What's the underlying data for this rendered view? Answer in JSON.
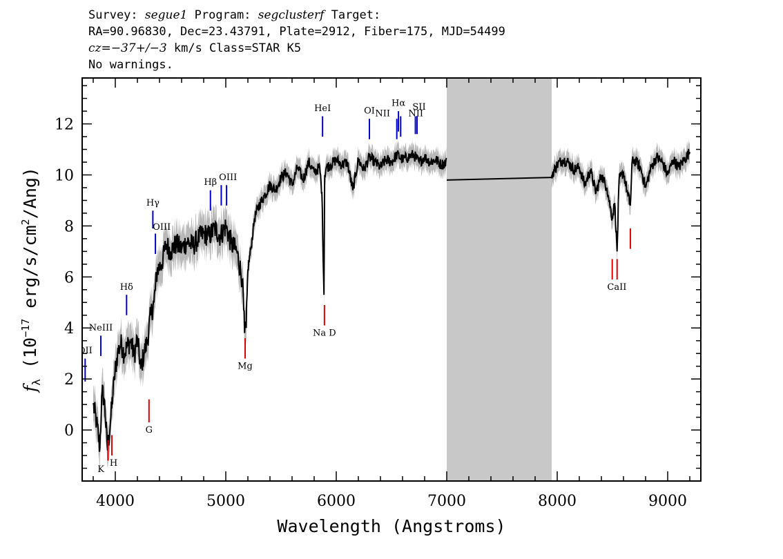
{
  "header": {
    "line1_prefix": "Survey: ",
    "survey": "segue1",
    "line1_mid": " Program: ",
    "program": "segclusterf",
    "line1_suffix": " Target:",
    "line2": "RA=90.96830, Dec=23.43791, Plate=2912, Fiber=175, MJD=54499",
    "cz_label": "cz",
    "cz_value": "=−37+/−3",
    "line3_suffix": " km/s Class=STAR K5",
    "line4": "No warnings."
  },
  "chart_data": {
    "type": "line",
    "xlabel": "Wavelength (Angstroms)",
    "ylabel_main": "f",
    "ylabel_sub": "λ",
    "ylabel_rest": " (10",
    "ylabel_exp": "−17",
    "ylabel_rest2": " erg/s/cm",
    "ylabel_exp2": "2",
    "ylabel_rest3": "/Ang)",
    "xlim": [
      3700,
      9300
    ],
    "ylim": [
      -2,
      13.8
    ],
    "xticks": [
      4000,
      5000,
      6000,
      7000,
      8000,
      9000
    ],
    "yticks": [
      0,
      2,
      4,
      6,
      8,
      10,
      12
    ],
    "masked_region": [
      7000,
      7950
    ],
    "colors": {
      "flux": "#000000",
      "error_band": "#b8b8b8",
      "mask": "#c8c8c8",
      "emission": "#0000cc",
      "absorption": "#dd0000"
    },
    "series": [
      {
        "role": "flux",
        "x": [
          3800,
          3830,
          3860,
          3880,
          3900,
          3930,
          3960,
          3990,
          4020,
          4050,
          4080,
          4110,
          4140,
          4170,
          4200,
          4230,
          4260,
          4290,
          4320,
          4350,
          4380,
          4420,
          4460,
          4500,
          4550,
          4600,
          4650,
          4700,
          4750,
          4800,
          4850,
          4900,
          4950,
          5000,
          5050,
          5100,
          5150,
          5170,
          5185,
          5200,
          5230,
          5260,
          5300,
          5350,
          5400,
          5450,
          5500,
          5550,
          5600,
          5650,
          5700,
          5750,
          5800,
          5850,
          5870,
          5889,
          5895,
          5910,
          5950,
          6000,
          6050,
          6100,
          6150,
          6200,
          6250,
          6300,
          6350,
          6400,
          6450,
          6500,
          6550,
          6600,
          6650,
          6700,
          6750,
          6800,
          6850,
          6900,
          6950,
          7000,
          7950,
          8000,
          8050,
          8100,
          8150,
          8200,
          8250,
          8300,
          8350,
          8400,
          8450,
          8498,
          8520,
          8542,
          8560,
          8600,
          8640,
          8662,
          8680,
          8720,
          8760,
          8800,
          8850,
          8900,
          8950,
          9000,
          9050,
          9100,
          9150,
          9200
        ],
        "values": [
          1.0,
          0.3,
          -0.7,
          1.5,
          1.2,
          -0.8,
          0.5,
          2.0,
          3.0,
          3.4,
          3.0,
          3.3,
          3.5,
          2.9,
          3.6,
          2.4,
          3.0,
          3.5,
          4.5,
          5.0,
          6.3,
          6.5,
          7.3,
          7.0,
          7.3,
          7.1,
          7.4,
          7.2,
          7.5,
          7.7,
          7.6,
          7.9,
          7.6,
          8.0,
          7.3,
          7.0,
          5.9,
          3.8,
          4.0,
          6.3,
          7.2,
          8.3,
          8.8,
          9.2,
          9.6,
          9.4,
          9.9,
          10.1,
          9.6,
          10.3,
          9.8,
          10.5,
          10.1,
          10.3,
          9.3,
          5.3,
          10.0,
          10.3,
          10.4,
          10.6,
          10.4,
          10.5,
          9.4,
          10.6,
          10.2,
          10.7,
          10.5,
          10.3,
          10.6,
          10.5,
          10.8,
          10.6,
          10.7,
          10.8,
          10.5,
          10.7,
          10.5,
          10.6,
          10.4,
          10.5,
          10.0,
          10.4,
          10.6,
          10.5,
          10.2,
          10.3,
          9.6,
          10.2,
          9.3,
          10.0,
          9.5,
          8.3,
          8.9,
          7.0,
          9.8,
          10.1,
          9.2,
          8.8,
          10.6,
          10.5,
          10.2,
          9.5,
          10.3,
          10.7,
          10.5,
          10.0,
          10.6,
          10.3,
          10.6,
          10.9
        ]
      },
      {
        "role": "masked_interpolation",
        "x": [
          7000,
          7950
        ],
        "values": [
          9.8,
          9.9
        ]
      }
    ],
    "line_markers": [
      {
        "label": "OII",
        "x": 3727,
        "kind": "emission",
        "y0": 1.9,
        "y1": 2.8,
        "lx": 3727,
        "ly": 3.0
      },
      {
        "label": "NeIII",
        "x": 3869,
        "kind": "emission",
        "y0": 2.9,
        "y1": 3.7,
        "lx": 3869,
        "ly": 3.9
      },
      {
        "label": "Hδ",
        "x": 4102,
        "kind": "emission",
        "y0": 4.5,
        "y1": 5.3,
        "lx": 4102,
        "ly": 5.5
      },
      {
        "label": "Hγ",
        "x": 4340,
        "kind": "emission",
        "y0": 7.9,
        "y1": 8.6,
        "lx": 4340,
        "ly": 8.8
      },
      {
        "label": "OIII",
        "x": 4363,
        "kind": "emission",
        "y0": 6.9,
        "y1": 7.7,
        "lx": 4420,
        "ly": 7.85
      },
      {
        "label": "Hβ",
        "x": 4861,
        "kind": "emission",
        "y0": 8.6,
        "y1": 9.4,
        "lx": 4861,
        "ly": 9.6
      },
      {
        "label": "OIII",
        "x": 4959,
        "kind": "emission",
        "y0": 8.8,
        "y1": 9.6,
        "lx": 5020,
        "ly": 9.8
      },
      {
        "label": "OIII",
        "x": 5007,
        "kind": "emission",
        "y0": 8.8,
        "y1": 9.6,
        "lx": null,
        "ly": null
      },
      {
        "label": "HeI",
        "x": 5876,
        "kind": "emission",
        "y0": 11.5,
        "y1": 12.3,
        "lx": 5876,
        "ly": 12.5
      },
      {
        "label": "OI",
        "x": 6300,
        "kind": "emission",
        "y0": 11.4,
        "y1": 12.2,
        "lx": 6300,
        "ly": 12.4
      },
      {
        "label": "NII",
        "x": 6548,
        "kind": "emission",
        "y0": 11.4,
        "y1": 12.2,
        "lx": 6420,
        "ly": 12.3
      },
      {
        "label": "Hα",
        "x": 6563,
        "kind": "emission",
        "y0": 11.7,
        "y1": 12.5,
        "lx": 6563,
        "ly": 12.7
      },
      {
        "label": "NII",
        "x": 6583,
        "kind": "emission",
        "y0": 11.5,
        "y1": 12.3,
        "lx": 6720,
        "ly": 12.3
      },
      {
        "label": "SII",
        "x": 6716,
        "kind": "emission",
        "y0": 11.6,
        "y1": 12.3,
        "lx": 6750,
        "ly": 12.55
      },
      {
        "label": "SII",
        "x": 6731,
        "kind": "emission",
        "y0": 11.6,
        "y1": 12.3,
        "lx": null,
        "ly": null
      },
      {
        "label": "K",
        "x": 3934,
        "kind": "absorption",
        "y0": -1.2,
        "y1": -0.4,
        "lx": 3870,
        "ly": -1.65
      },
      {
        "label": "H",
        "x": 3969,
        "kind": "absorption",
        "y0": -1.0,
        "y1": -0.2,
        "lx": 3985,
        "ly": -1.4
      },
      {
        "label": "G",
        "x": 4305,
        "kind": "absorption",
        "y0": 0.3,
        "y1": 1.2,
        "lx": 4305,
        "ly": -0.1
      },
      {
        "label": "Mg",
        "x": 5175,
        "kind": "absorption",
        "y0": 2.8,
        "y1": 3.6,
        "lx": 5175,
        "ly": 2.4
      },
      {
        "label": "Na D",
        "x": 5893,
        "kind": "absorption",
        "y0": 4.1,
        "y1": 4.9,
        "lx": 5893,
        "ly": 3.7
      },
      {
        "label": "CaII",
        "x": 8498,
        "kind": "absorption",
        "y0": 5.9,
        "y1": 6.7,
        "lx": 8540,
        "ly": 5.5
      },
      {
        "label": "CaII",
        "x": 8542,
        "kind": "absorption",
        "y0": 5.9,
        "y1": 6.7,
        "lx": null,
        "ly": null
      },
      {
        "label": "CaII",
        "x": 8662,
        "kind": "absorption",
        "y0": 7.1,
        "y1": 7.9,
        "lx": null,
        "ly": null
      }
    ]
  }
}
